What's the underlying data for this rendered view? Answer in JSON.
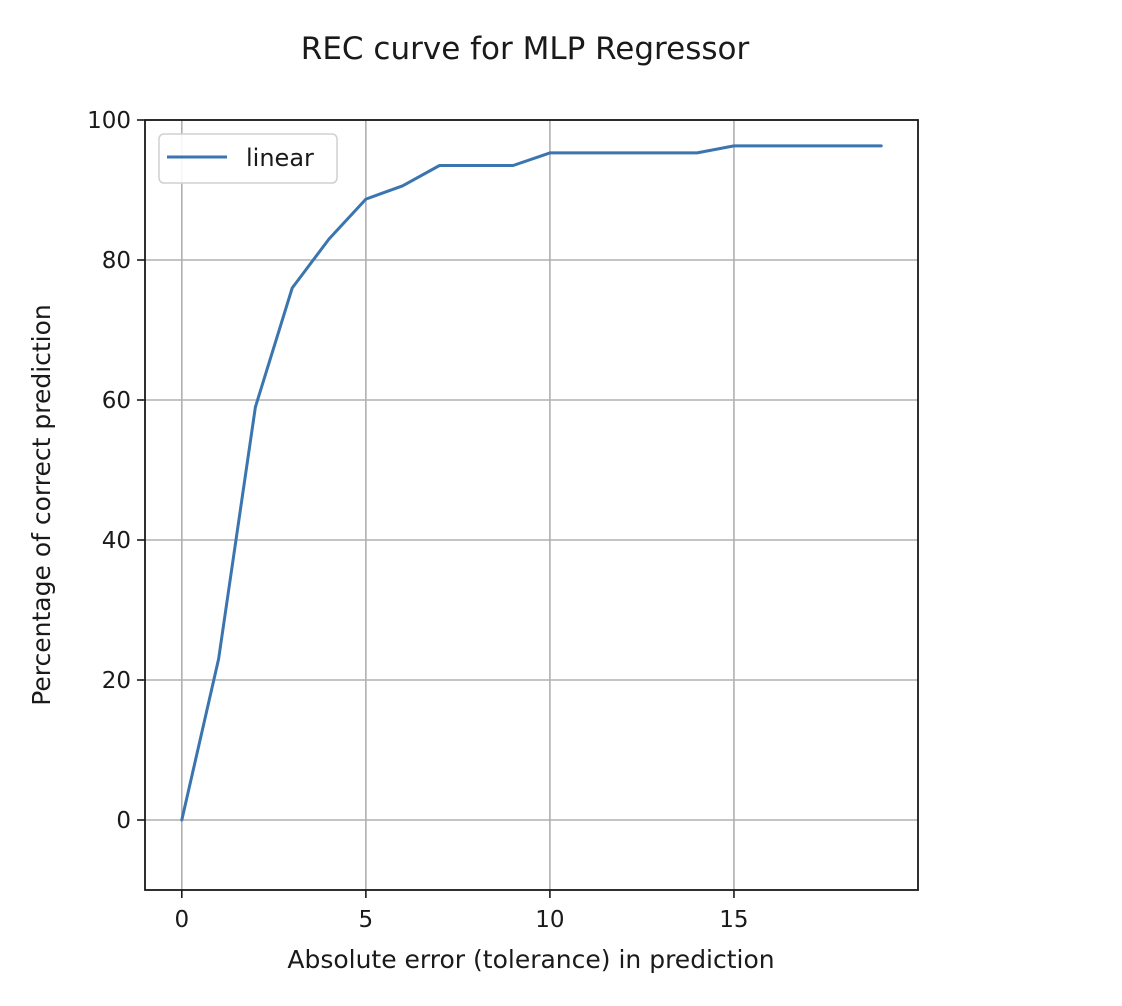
{
  "chart_data": {
    "type": "line",
    "title": "REC curve for MLP Regressor",
    "xlabel": "Absolute error (tolerance) in prediction",
    "ylabel": "Percentage of correct prediction",
    "xlim": [
      -1,
      20
    ],
    "ylim": [
      -10,
      100
    ],
    "xticks": [
      0,
      5,
      10,
      15
    ],
    "yticks": [
      0,
      20,
      40,
      60,
      80,
      100
    ],
    "grid": true,
    "legend_position": "upper-left",
    "series": [
      {
        "name": "linear",
        "color": "#3b75af",
        "x": [
          0,
          1,
          2,
          3,
          4,
          5,
          6,
          7,
          8,
          9,
          10,
          11,
          12,
          13,
          14,
          15,
          16,
          17,
          18,
          19
        ],
        "y": [
          0,
          23,
          59,
          76,
          83,
          88.7,
          90.6,
          93.5,
          93.5,
          93.5,
          95.3,
          95.3,
          95.3,
          95.3,
          95.3,
          96.3,
          96.3,
          96.3,
          96.3,
          96.3
        ]
      }
    ]
  }
}
